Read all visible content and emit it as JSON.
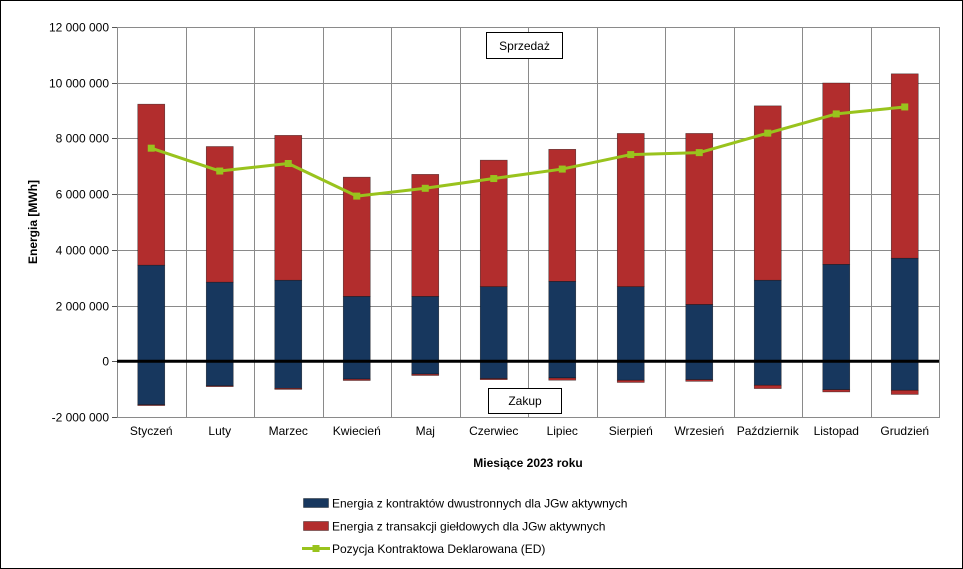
{
  "chart_data": {
    "type": "bar",
    "stacked": true,
    "categories": [
      "Styczeń",
      "Luty",
      "Marzec",
      "Kwiecień",
      "Maj",
      "Czerwiec",
      "Lipiec",
      "Sierpień",
      "Wrzesień",
      "Październik",
      "Listopad",
      "Grudzień"
    ],
    "series": [
      {
        "name": "Energia z kontraktów dwustronnych dla JGw aktywnych",
        "type": "bar",
        "color": "#17375E",
        "positive": [
          3450000,
          2840000,
          2910000,
          2330000,
          2330000,
          2680000,
          2870000,
          2680000,
          2040000,
          2910000,
          3480000,
          3700000
        ],
        "negative": [
          -1560000,
          -880000,
          -970000,
          -640000,
          -460000,
          -620000,
          -600000,
          -680000,
          -660000,
          -860000,
          -1020000,
          -1040000
        ]
      },
      {
        "name": "Energia z transakcji giełdowych dla JGw aktywnych",
        "type": "bar",
        "color": "#B22D2D",
        "positive": [
          5780000,
          4870000,
          5200000,
          4280000,
          4380000,
          4540000,
          4740000,
          5500000,
          6140000,
          6260000,
          6510000,
          6620000
        ],
        "negative": [
          -30000,
          -30000,
          -40000,
          -50000,
          -50000,
          -40000,
          -80000,
          -80000,
          -60000,
          -120000,
          -80000,
          -150000
        ]
      },
      {
        "name": "Pozycja Kontraktowa Deklarowana (ED)",
        "type": "line",
        "color": "#99C31D",
        "values": [
          7650000,
          6830000,
          7100000,
          5930000,
          6210000,
          6560000,
          6900000,
          7420000,
          7490000,
          8190000,
          8880000,
          9130000
        ]
      }
    ],
    "annotations": {
      "sales_label": "Sprzedaż",
      "purchase_label": "Zakup"
    },
    "xlabel": "Miesiące 2023 roku",
    "ylabel": "Energia [MWh]",
    "ylim": [
      -2000000,
      12000000
    ],
    "yticks": [
      {
        "value": 12000000,
        "label": "12 000 000"
      },
      {
        "value": 10000000,
        "label": "10 000 000"
      },
      {
        "value": 8000000,
        "label": "8 000 000"
      },
      {
        "value": 6000000,
        "label": "6 000 000"
      },
      {
        "value": 4000000,
        "label": "4 000 000"
      },
      {
        "value": 2000000,
        "label": "2 000 000"
      },
      {
        "value": 0,
        "label": "0"
      },
      {
        "value": -2000000,
        "label": "-2 000 000"
      }
    ],
    "grid": {
      "horizontal": true,
      "vertical": true
    },
    "legend_position": "bottom"
  }
}
